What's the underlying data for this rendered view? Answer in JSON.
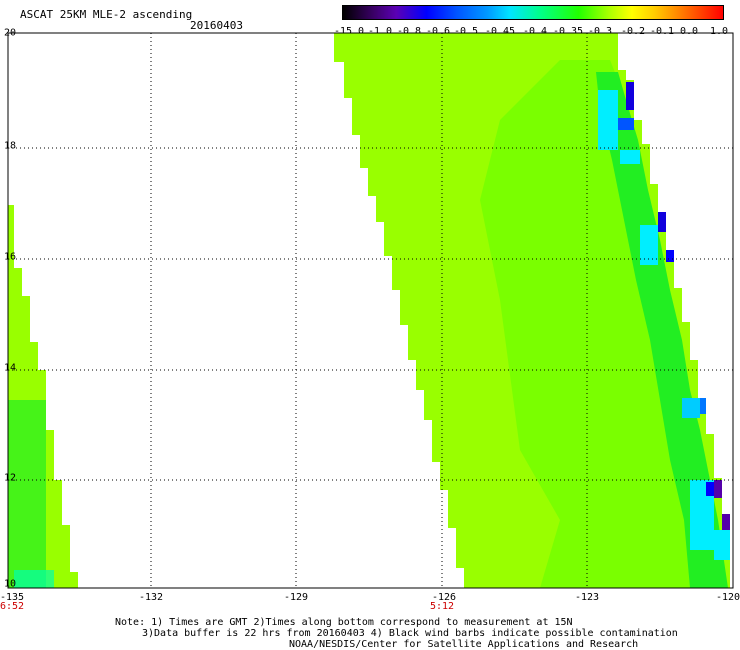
{
  "header": {
    "title": "ASCAT 25KM MLE-2 ascending",
    "date": "20160403"
  },
  "colorbar": {
    "ticks": [
      "-15.0",
      "-1.0",
      "-0.8",
      "-0.6",
      "-0.5",
      "-0.45",
      "-0.4",
      "-0.35",
      "-0.3",
      "-0.2",
      "-0.1",
      "0.0",
      "1.0"
    ]
  },
  "map": {
    "lat_labels": [
      "20",
      "18",
      "16",
      "14",
      "12",
      "10"
    ],
    "lon_labels": [
      "-135",
      "-132",
      "-129",
      "-126",
      "-123",
      "-120"
    ],
    "time_labels": [
      {
        "lon": "-135",
        "time": "6:52"
      },
      {
        "lon": "-126",
        "time": "5:12"
      }
    ],
    "colors": {
      "field": "#99ff00",
      "field_alt": "#66ff00",
      "green": "#22ee22",
      "cyan": "#00eeff",
      "blue": "#0077ff",
      "deep_blue": "#1100dd",
      "purple": "#5500aa",
      "grid": "#000000",
      "time_text": "#cc0000"
    }
  },
  "notes": {
    "line1": "Note: 1) Times are GMT 2)Times along bottom correspond to measurement at 15N",
    "line2": "3)Data buffer is 22 hrs from 20160403 4) Black wind barbs indicate possible contamination",
    "line3": "NOAA/NESDIS/Center for Satellite Applications and Research"
  }
}
